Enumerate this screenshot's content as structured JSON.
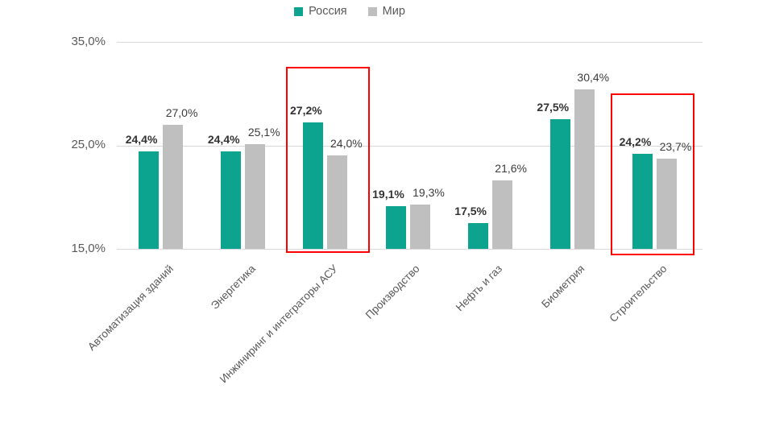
{
  "page": {
    "background": "#ffffff"
  },
  "legend": {
    "items": [
      {
        "label": "Россия",
        "color": "#0da48f"
      },
      {
        "label": "Мир",
        "color": "#bfbfbf"
      }
    ]
  },
  "chart_data": {
    "type": "bar",
    "title": "",
    "xlabel": "",
    "ylabel": "",
    "categories": [
      "Автоматизация зданий",
      "Энергетика",
      "Инжиниринг и интеграторы АСУ",
      "Производство",
      "Нефть и газ",
      "Биометрия",
      "Строительство"
    ],
    "series": [
      {
        "name": "Россия",
        "color": "#0da48f",
        "values": [
          24.4,
          24.4,
          27.2,
          19.1,
          17.5,
          27.5,
          24.2
        ],
        "labels": [
          "24,4%",
          "24,4%",
          "27,2%",
          "19,1%",
          "17,5%",
          "27,5%",
          "24,2%"
        ],
        "label_bold": true
      },
      {
        "name": "Мир",
        "color": "#bfbfbf",
        "values": [
          27.0,
          25.1,
          24.0,
          19.3,
          21.6,
          30.4,
          23.7
        ],
        "labels": [
          "27,0%",
          "25,1%",
          "24,0%",
          "19,3%",
          "21,6%",
          "30,4%",
          "23,7%"
        ],
        "label_bold": false
      }
    ],
    "ylim": [
      15,
      35
    ],
    "yticks": [
      {
        "value": 35,
        "label": "35,0%"
      },
      {
        "value": 25,
        "label": "25,0%"
      },
      {
        "value": 15,
        "label": "15,0%"
      }
    ],
    "grid": "horizontal",
    "legend_position": "top",
    "highlighted_category_indices": [
      2,
      6
    ],
    "highlight_color": "#ff0000"
  }
}
